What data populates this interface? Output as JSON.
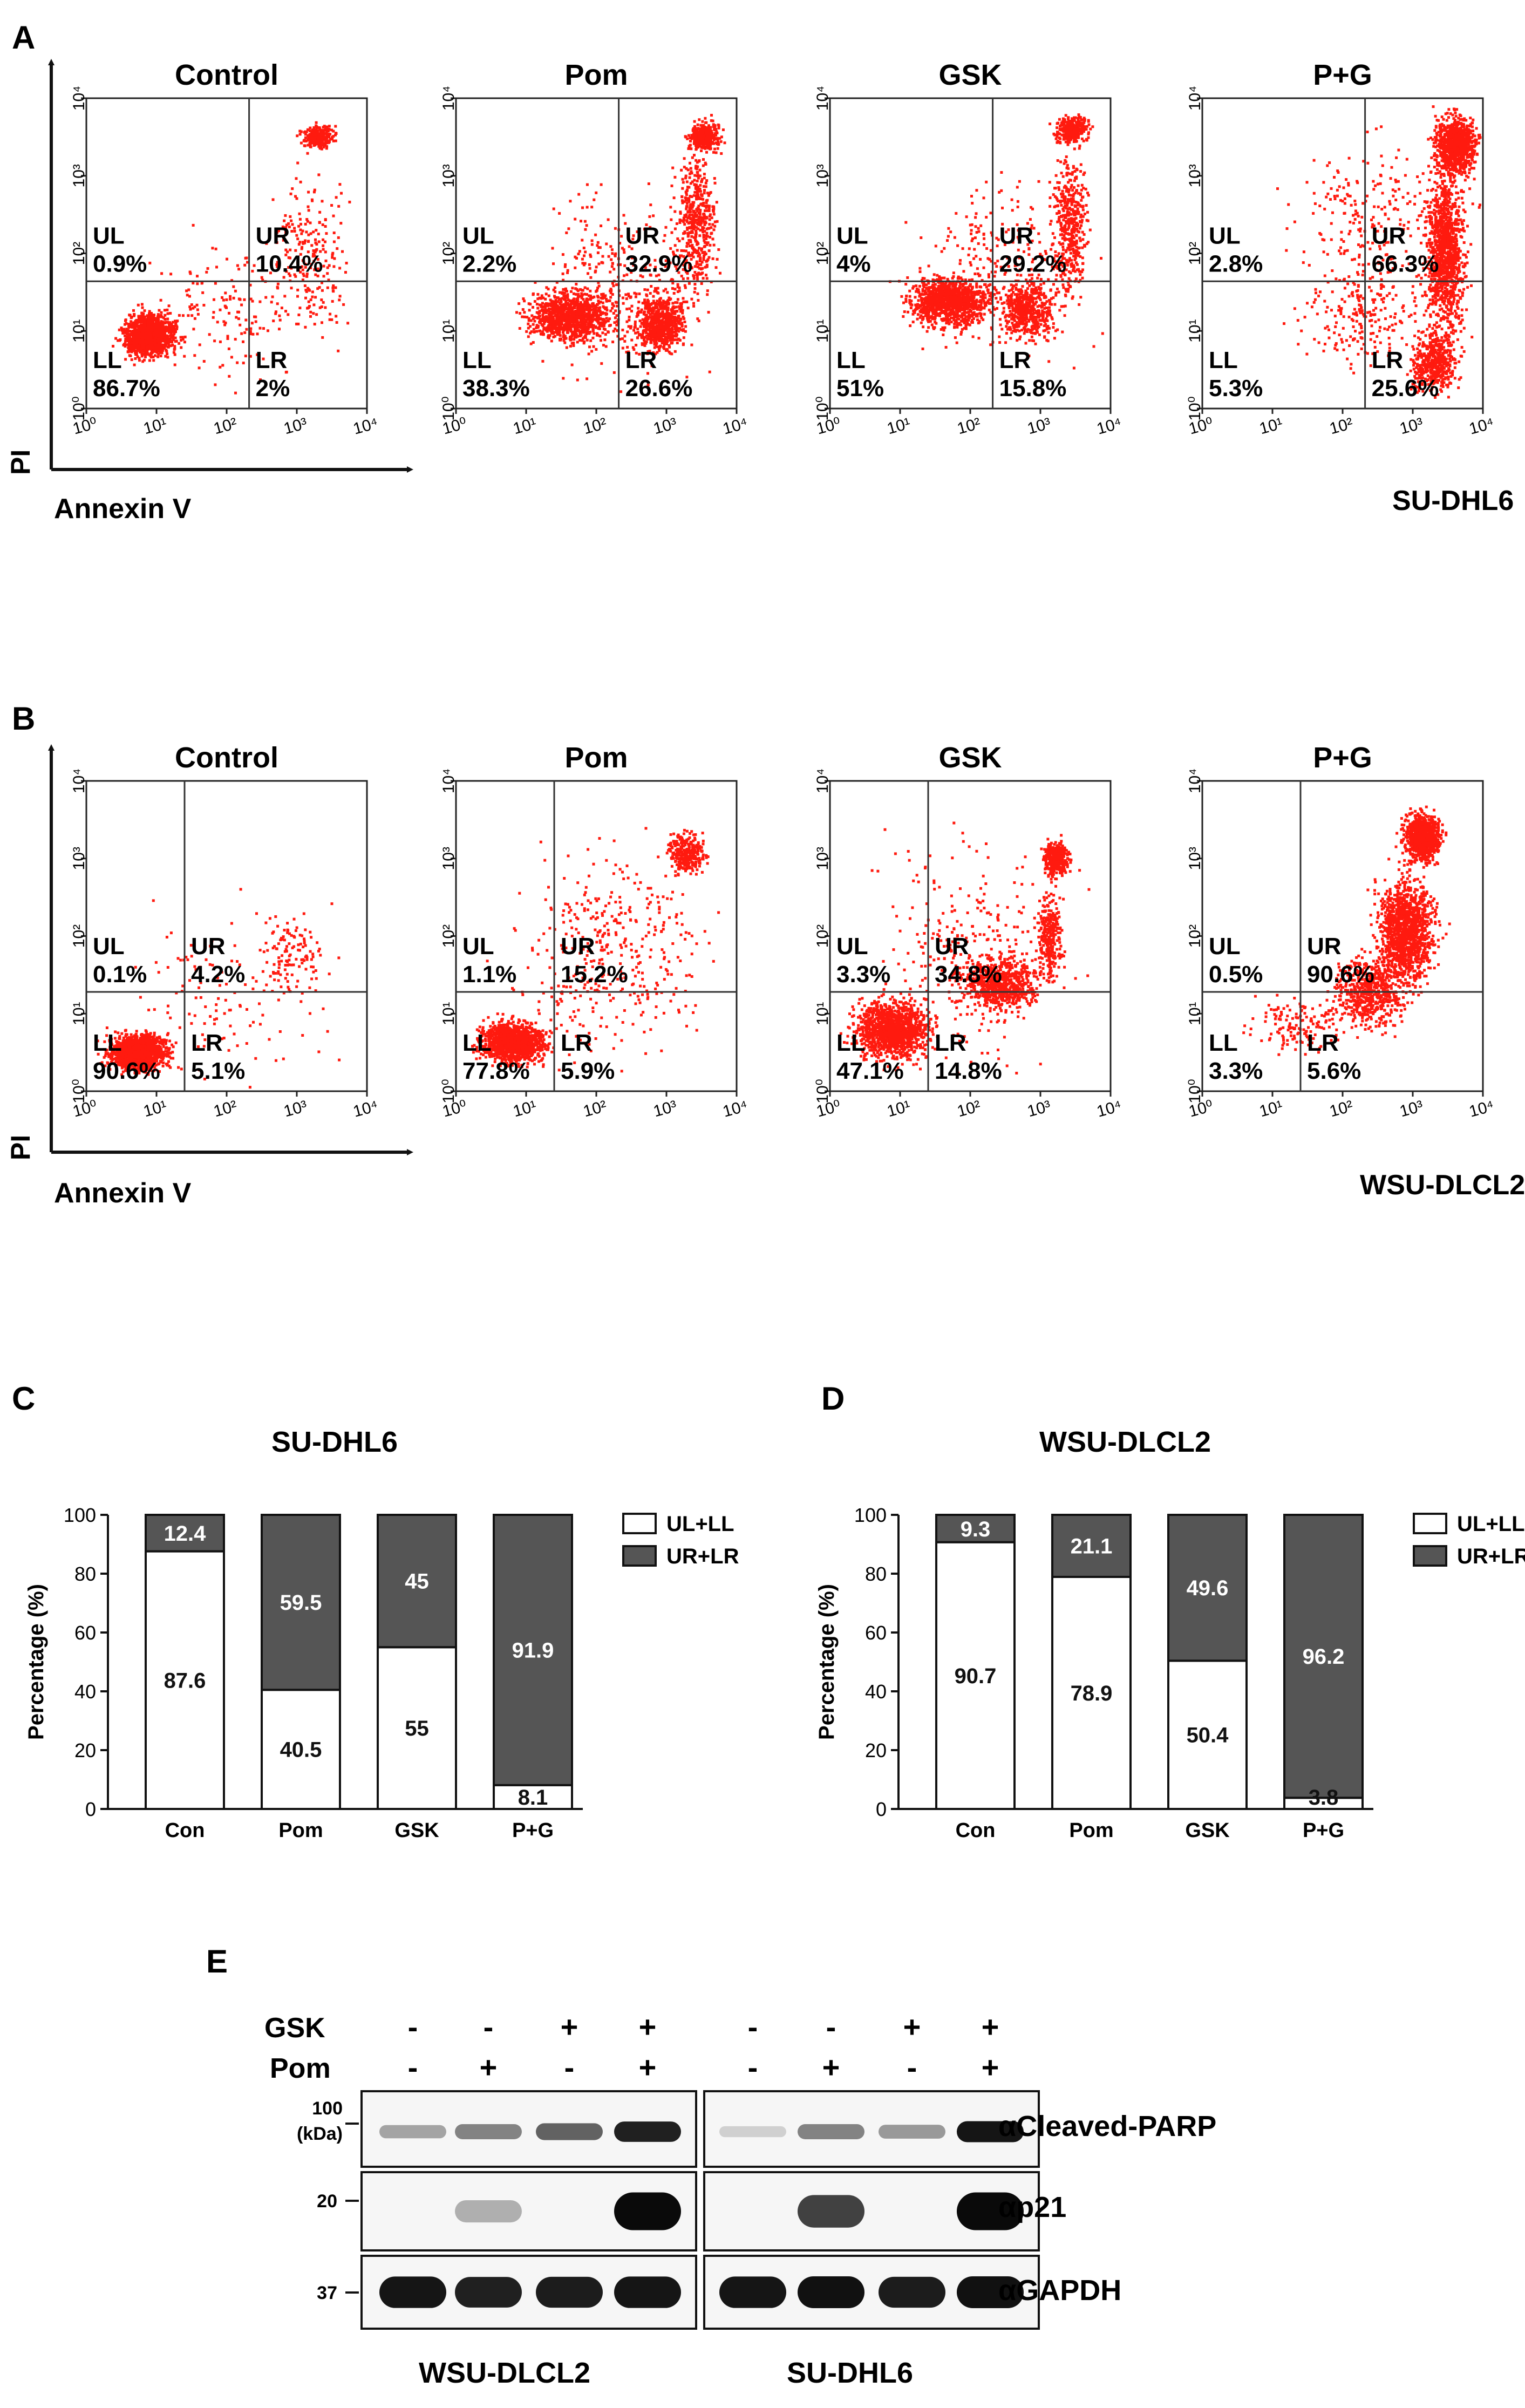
{
  "figure": {
    "panel_a": {
      "label": "A",
      "axis_x": "Annexin V",
      "axis_y": "PI",
      "cell_line": "SU-DHL6",
      "tick_labels": [
        "10⁰",
        "10¹",
        "10²",
        "10³",
        "10⁴"
      ],
      "plots": [
        {
          "title": "Control",
          "ul_label": "UL",
          "ul": "0.9%",
          "ur_label": "UR",
          "ur": "10.4%",
          "ll_label": "LL",
          "ll": "86.7%",
          "lr_label": "LR",
          "lr": "2%"
        },
        {
          "title": "Pom",
          "ul_label": "UL",
          "ul": "2.2%",
          "ur_label": "UR",
          "ur": "32.9%",
          "ll_label": "LL",
          "ll": "38.3%",
          "lr_label": "LR",
          "lr": "26.6%"
        },
        {
          "title": "GSK",
          "ul_label": "UL",
          "ul": "4%",
          "ur_label": "UR",
          "ur": "29.2%",
          "ll_label": "LL",
          "ll": "51%",
          "lr_label": "LR",
          "lr": "15.8%"
        },
        {
          "title": "P+G",
          "ul_label": "UL",
          "ul": "2.8%",
          "ur_label": "UR",
          "ur": "66.3%",
          "ll_label": "LL",
          "ll": "5.3%",
          "lr_label": "LR",
          "lr": "25.6%"
        }
      ]
    },
    "panel_b": {
      "label": "B",
      "axis_x": "Annexin V",
      "axis_y": "PI",
      "cell_line": "WSU-DLCL2",
      "tick_labels": [
        "10⁰",
        "10¹",
        "10²",
        "10³",
        "10⁴"
      ],
      "plots": [
        {
          "title": "Control",
          "ul_label": "UL",
          "ul": "0.1%",
          "ur_label": "UR",
          "ur": "4.2%",
          "ll_label": "LL",
          "ll": "90.6%",
          "lr_label": "LR",
          "lr": "5.1%"
        },
        {
          "title": "Pom",
          "ul_label": "UL",
          "ul": "1.1%",
          "ur_label": "UR",
          "ur": "15.2%",
          "ll_label": "LL",
          "ll": "77.8%",
          "lr_label": "LR",
          "lr": "5.9%"
        },
        {
          "title": "GSK",
          "ul_label": "UL",
          "ul": "3.3%",
          "ur_label": "UR",
          "ur": "34.8%",
          "ll_label": "LL",
          "ll": "47.1%",
          "lr_label": "LR",
          "lr": "14.8%"
        },
        {
          "title": "P+G",
          "ul_label": "UL",
          "ul": "0.5%",
          "ur_label": "UR",
          "ur": "90.6%",
          "ll_label": "LL",
          "ll": "3.3%",
          "lr_label": "LR",
          "lr": "5.6%"
        }
      ]
    },
    "panel_c": {
      "label": "C"
    },
    "panel_d": {
      "label": "D"
    },
    "panel_e": {
      "label": "E",
      "row_labels": {
        "gsk": "GSK",
        "pom": "Pom"
      },
      "gsk_signs": [
        "-",
        "-",
        "+",
        "+",
        "-",
        "-",
        "+",
        "+"
      ],
      "pom_signs": [
        "-",
        "+",
        "-",
        "+",
        "-",
        "+",
        "-",
        "+"
      ],
      "marker_100": "100",
      "marker_kda": "(kDa)",
      "marker_20": "20",
      "marker_37": "37",
      "blot_labels": [
        "αCleaved-PARP",
        "αp21",
        "αGAPDH"
      ],
      "cell_lines": [
        "WSU-DLCL2",
        "SU-DHL6"
      ],
      "band_intensity": {
        "cleaved_parp": [
          0.3,
          0.45,
          0.6,
          0.9,
          0.1,
          0.45,
          0.35,
          0.95
        ],
        "p21": [
          0.0,
          0.25,
          0.0,
          1.0,
          0.0,
          0.75,
          0.0,
          1.0
        ],
        "gapdh": [
          0.95,
          0.9,
          0.92,
          0.95,
          0.95,
          0.97,
          0.92,
          0.97
        ]
      }
    }
  },
  "chart_data": [
    {
      "type": "bar",
      "title": "SU-DHL6",
      "categories": [
        "Con",
        "Pom",
        "GSK",
        "P+G"
      ],
      "series": [
        {
          "name": "UL+LL",
          "color": "#ffffff",
          "values": [
            87.6,
            40.5,
            55,
            8.1
          ]
        },
        {
          "name": "UR+LR",
          "color": "#555555",
          "values": [
            12.4,
            59.5,
            45,
            91.9
          ]
        }
      ],
      "value_labels": {
        "lower": [
          "87.6",
          "40.5",
          "55",
          "8.1"
        ],
        "upper": [
          "12.4",
          "59.5",
          "45",
          "91.9"
        ]
      },
      "ylabel": "Percentage (%)",
      "ylim": [
        0,
        100
      ],
      "yticks": [
        "0",
        "20",
        "40",
        "60",
        "80",
        "100"
      ],
      "stacked": true,
      "legend": "top-right"
    },
    {
      "type": "bar",
      "title": "WSU-DLCL2",
      "categories": [
        "Con",
        "Pom",
        "GSK",
        "P+G"
      ],
      "series": [
        {
          "name": "UL+LL",
          "color": "#ffffff",
          "values": [
            90.7,
            78.9,
            50.4,
            3.8
          ]
        },
        {
          "name": "UR+LR",
          "color": "#555555",
          "values": [
            9.3,
            21.1,
            49.6,
            96.2
          ]
        }
      ],
      "value_labels": {
        "lower": [
          "90.7",
          "78.9",
          "50.4",
          "3.8"
        ],
        "upper": [
          "9.3",
          "21.1",
          "49.6",
          "96.2"
        ]
      },
      "ylabel": "Percentage (%)",
      "ylim": [
        0,
        100
      ],
      "yticks": [
        "0",
        "20",
        "40",
        "60",
        "80",
        "100"
      ],
      "stacked": true,
      "legend": "top-right"
    }
  ]
}
